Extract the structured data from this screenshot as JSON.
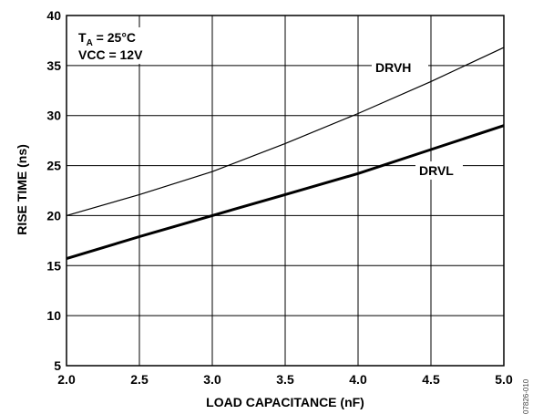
{
  "chart_data": {
    "type": "line",
    "xlabel": "LOAD CAPACITANCE (nF)",
    "ylabel": "RISE TIME (ns)",
    "xlim": [
      2.0,
      5.0
    ],
    "ylim": [
      5,
      40
    ],
    "xticks": [
      "2.0",
      "2.5",
      "3.0",
      "3.5",
      "4.0",
      "4.5",
      "5.0"
    ],
    "yticks": [
      "5",
      "10",
      "15",
      "20",
      "25",
      "30",
      "35",
      "40"
    ],
    "grid": true,
    "annotations": {
      "condition_line1_main": "T",
      "condition_line1_sub": "A",
      "condition_line1_rest": " = 25°C",
      "condition_line2": "VCC = 12V"
    },
    "figure_code": "07826-010",
    "series": [
      {
        "name": "DRVH",
        "line_weight": "thin",
        "x": [
          2.0,
          2.5,
          3.0,
          3.5,
          4.0,
          4.5,
          5.0
        ],
        "y": [
          20.0,
          22.1,
          24.4,
          27.2,
          30.2,
          33.4,
          36.8
        ]
      },
      {
        "name": "DRVL",
        "line_weight": "thick",
        "x": [
          2.0,
          2.5,
          3.0,
          3.5,
          4.0,
          4.5,
          5.0
        ],
        "y": [
          15.7,
          17.9,
          20.0,
          22.1,
          24.2,
          26.6,
          29.0
        ]
      }
    ]
  }
}
